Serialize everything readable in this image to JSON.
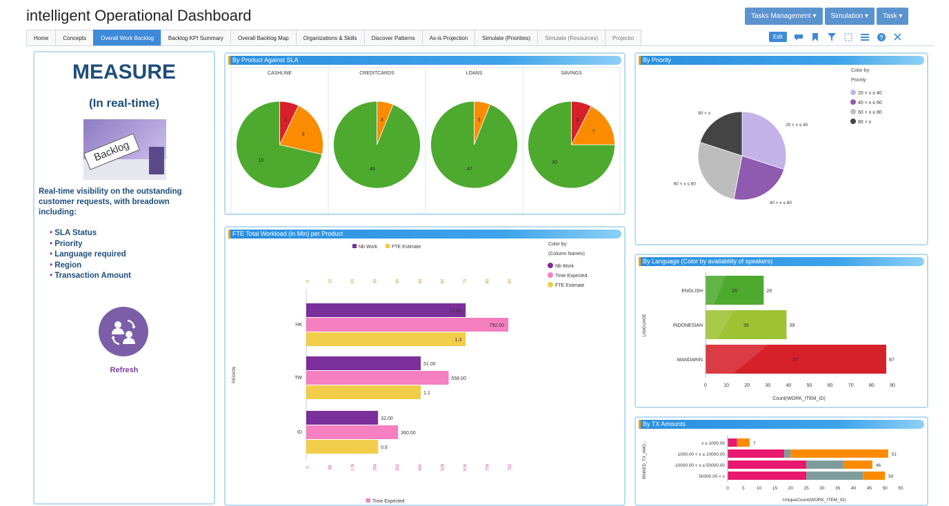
{
  "app": {
    "title": "intelligent Operational Dashboard"
  },
  "top_menu": [
    "Tasks Management ▾",
    "Simulation ▾",
    "Task ▾"
  ],
  "tabs": [
    {
      "label": "Home"
    },
    {
      "label": "Concepts"
    },
    {
      "label": "Overall Work Backlog",
      "active": true
    },
    {
      "label": "Backlog KPI Summary"
    },
    {
      "label": "Overall Backlog Map"
    },
    {
      "label": "Organizations & Skills"
    },
    {
      "label": "Discover Patterns"
    },
    {
      "label": "As-is Projection"
    },
    {
      "label": "Simulate (Priorities)"
    },
    {
      "label": "Simulate (Resources)"
    },
    {
      "label": "Projectio"
    }
  ],
  "toolbar": {
    "edit_label": "Edit",
    "icons": [
      "comment-icon",
      "bookmark-icon",
      "filter-icon",
      "select-icon",
      "menu-icon",
      "help-icon",
      "close-icon"
    ]
  },
  "left": {
    "measure": "MEASURE",
    "subtitle": "(In real-time)",
    "image_text": "Backlog",
    "description": "Real-time visibility on the outstanding customer requests, with breadown including:",
    "bullets": [
      "SLA Status",
      "Priority",
      "Language required",
      "Region",
      "Transaction Amount"
    ],
    "refresh_label": "Refresh"
  },
  "colors": {
    "green": "#4daa2e",
    "orange": "#fb8c00",
    "red": "#d6202a",
    "purple": "#7b2f9a",
    "pink": "#f57fc0",
    "yellow": "#f2cd49",
    "lavender": "#c3b3e8",
    "violet": "#8e5bb0",
    "grey": "#bdbdbd",
    "dark": "#444444",
    "teal": "#7f9c9c",
    "magenta": "#e8196e",
    "accent": "#3f8ad8"
  },
  "chart_data": [
    {
      "title": "By Product Against SLA",
      "type": "pie",
      "pies": [
        {
          "name": "CASHLINE",
          "slices": [
            {
              "label": "1",
              "value": 1,
              "color": "red"
            },
            {
              "label": "3",
              "value": 3,
              "color": "orange"
            },
            {
              "label": "10",
              "value": 10,
              "color": "green"
            }
          ]
        },
        {
          "name": "CREDITCARDS",
          "slices": [
            {
              "label": "3",
              "value": 3,
              "color": "orange"
            },
            {
              "label": "46",
              "value": 46,
              "color": "green"
            }
          ]
        },
        {
          "name": "LOANS",
          "slices": [
            {
              "label": "3",
              "value": 3,
              "color": "orange"
            },
            {
              "label": "47",
              "value": 47,
              "color": "green"
            }
          ]
        },
        {
          "name": "SAVINGS",
          "slices": [
            {
              "label": "3",
              "value": 3,
              "color": "red"
            },
            {
              "label": "7",
              "value": 7,
              "color": "orange"
            },
            {
              "label": "30",
              "value": 30,
              "color": "green"
            }
          ]
        }
      ]
    },
    {
      "title": "By Priority",
      "type": "pie",
      "legend_title": "Color by:",
      "legend_sub": "Priority",
      "slices": [
        {
          "label": "20 < x ≤ 40",
          "value": 30,
          "color": "lavender"
        },
        {
          "label": "40 < x ≤ 60",
          "value": 23,
          "color": "violet"
        },
        {
          "label": "60 < x ≤ 80",
          "value": 27,
          "color": "grey"
        },
        {
          "label": "80 < x",
          "value": 20,
          "color": "dark"
        }
      ]
    },
    {
      "title": "FTE Total Workload (in Min) per Product",
      "type": "bar",
      "legend_top": [
        "Nb Work",
        "FTE Estimate"
      ],
      "legend_title": "Color by:",
      "legend_sub": "(Column Names)",
      "series": [
        {
          "name": "Nb Work",
          "color": "purple"
        },
        {
          "name": "Time Expected",
          "color": "pink"
        },
        {
          "name": "FTE Estimate",
          "color": "yellow"
        }
      ],
      "categories": [
        "HK",
        "TW",
        "ID"
      ],
      "values": [
        [
          71.0,
          792.0,
          1.3
        ],
        [
          51.0,
          558.0,
          1.1
        ],
        [
          32.0,
          360.0,
          0.6
        ]
      ],
      "value_labels": [
        [
          "71.00",
          "792.00",
          "1.3"
        ],
        [
          "51.00",
          "558.00",
          "1.1"
        ],
        [
          "32.00",
          "360.00",
          "0.6"
        ]
      ],
      "ylabel": "REGION",
      "xlabel_bottom": "Time Expected",
      "top_ticks": [
        "0",
        "10",
        "20",
        "30",
        "40",
        "50",
        "60",
        "70",
        "80",
        "90"
      ],
      "bottom_ticks": [
        "0",
        "88",
        "176",
        "264",
        "352",
        "440",
        "528",
        "616",
        "704",
        "792"
      ],
      "xlim": [
        0,
        90
      ]
    },
    {
      "title": "By Language (Color by availability of speakers)",
      "type": "bar",
      "categories": [
        "ENGLISH",
        "INDONESIAN",
        "MANDARIN"
      ],
      "values": [
        28,
        39,
        87
      ],
      "colors": [
        "green",
        "#9ec233",
        "red"
      ],
      "xlabel": "Count(WORK_ITEM_ID)",
      "ylabel": "LANGUAGE",
      "ticks": [
        "0",
        "10",
        "20",
        "30",
        "40",
        "50",
        "60",
        "70",
        "80",
        "90"
      ],
      "xlim": [
        0,
        90
      ]
    },
    {
      "title": "By TX Amounts",
      "type": "bar",
      "stacked": true,
      "categories": [
        "x ≤ 1000.00",
        "1000.00 < x ≤ 10000.00",
        "10000.00 < x ≤ 50000.00",
        "50000.00 < x"
      ],
      "segments": [
        [
          [
            3,
            "magenta"
          ],
          [
            4,
            "orange"
          ]
        ],
        [
          [
            18,
            "magenta"
          ],
          [
            2,
            "teal"
          ],
          [
            31,
            "orange"
          ]
        ],
        [
          [
            25,
            "magenta"
          ],
          [
            12,
            "teal"
          ],
          [
            9,
            "orange"
          ]
        ],
        [
          [
            25,
            "magenta"
          ],
          [
            18,
            "teal"
          ],
          [
            7,
            "orange"
          ]
        ]
      ],
      "totals": [
        "7",
        "51",
        "46",
        "50"
      ],
      "xlabel": "UniqueCount(WORK_ITEM_ID)",
      "ylabel": "BINNED_TX_AMO...",
      "ticks": [
        "0",
        "5",
        "10",
        "15",
        "20",
        "25",
        "30",
        "35",
        "40",
        "45",
        "50",
        "55"
      ],
      "xlim": [
        0,
        55
      ]
    }
  ]
}
